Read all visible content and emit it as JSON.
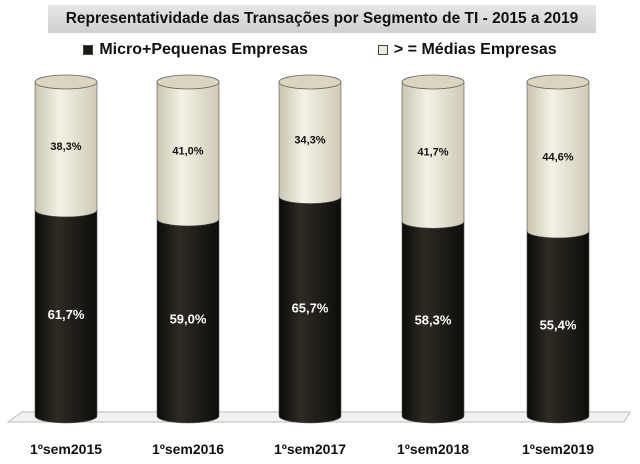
{
  "chart_data": {
    "type": "bar",
    "stacked": true,
    "title": "Representatividade das Transações por Segmento de TI - 2015 a 2019",
    "categories": [
      "1ºsem2015",
      "1ºsem2016",
      "1ºsem2017",
      "1ºsem2018",
      "1ºsem2019"
    ],
    "series": [
      {
        "name": "Micro+Pequenas Empresas",
        "values": [
          61.7,
          59.0,
          65.7,
          58.3,
          55.4
        ],
        "labels": [
          "61,7%",
          "59,0%",
          "65,7%",
          "58,3%",
          "55,4%"
        ],
        "color": "#1c1a15",
        "label_color": "#ffffff"
      },
      {
        "name": "> = Médias Empresas",
        "values": [
          38.3,
          41.0,
          34.3,
          41.7,
          44.6
        ],
        "labels": [
          "38,3%",
          "41,0%",
          "34,3%",
          "41,7%",
          "44,6%"
        ],
        "color": "#eeebdb",
        "label_color": "#111111"
      }
    ],
    "ylim": [
      0,
      100
    ],
    "legend_position": "top",
    "grid": false
  }
}
